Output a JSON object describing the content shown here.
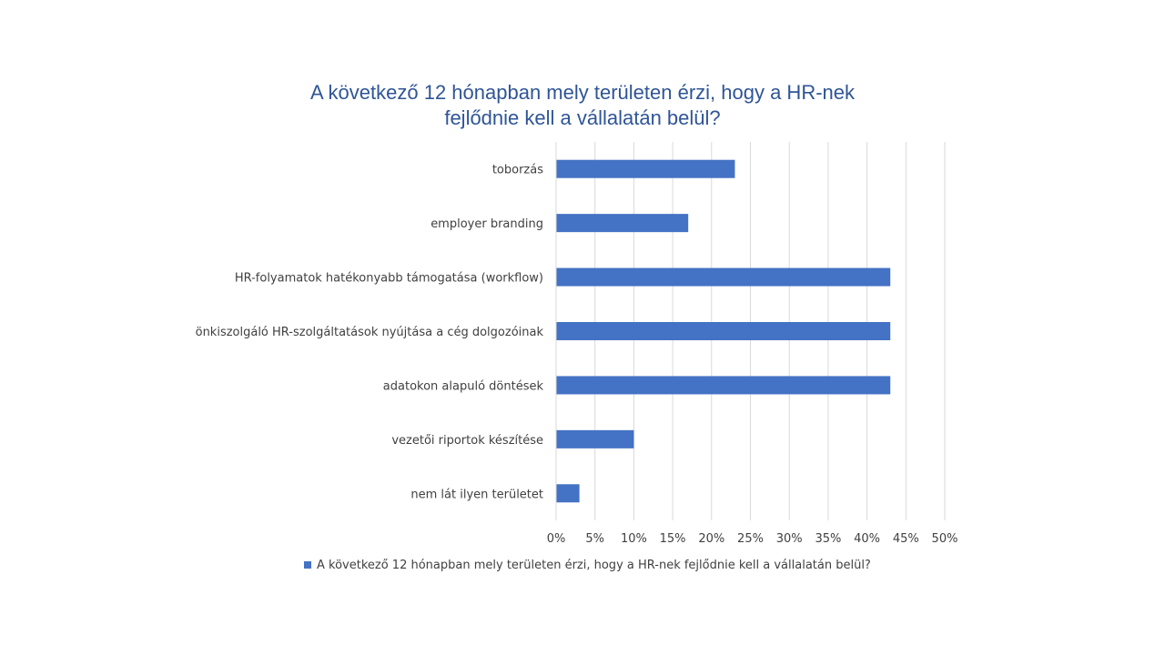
{
  "chart_data": {
    "type": "bar",
    "orientation": "horizontal",
    "title_lines": [
      "A következő 12 hónapban mely területen érzi, hogy a HR-nek",
      "fejlődnie kell a vállalatán belül?"
    ],
    "categories": [
      "toborzás",
      "employer branding",
      "HR-folyamatok hatékonyabb támogatása (workflow)",
      "önkiszolgáló HR-szolgáltatások nyújtása a cég dolgozóinak",
      "adatokon alapuló döntések",
      "vezetői riportok készítése",
      "nem lát ilyen területet"
    ],
    "series": [
      {
        "name": "A következő 12 hónapban mely területen érzi, hogy a HR-nek fejlődnie kell a vállalatán belül?",
        "values": [
          23,
          17,
          43,
          43,
          43,
          10,
          3
        ],
        "color": "#4472c4"
      }
    ],
    "xlim": [
      0,
      50
    ],
    "x_ticks": [
      "0%",
      "5%",
      "10%",
      "15%",
      "20%",
      "25%",
      "30%",
      "35%",
      "40%",
      "45%",
      "50%"
    ],
    "grid": true,
    "legend_position": "bottom",
    "colors": {
      "title": "#2f5597",
      "bar": "#4472c4",
      "gridline": "#d9d9d9",
      "label": "#404040"
    }
  }
}
